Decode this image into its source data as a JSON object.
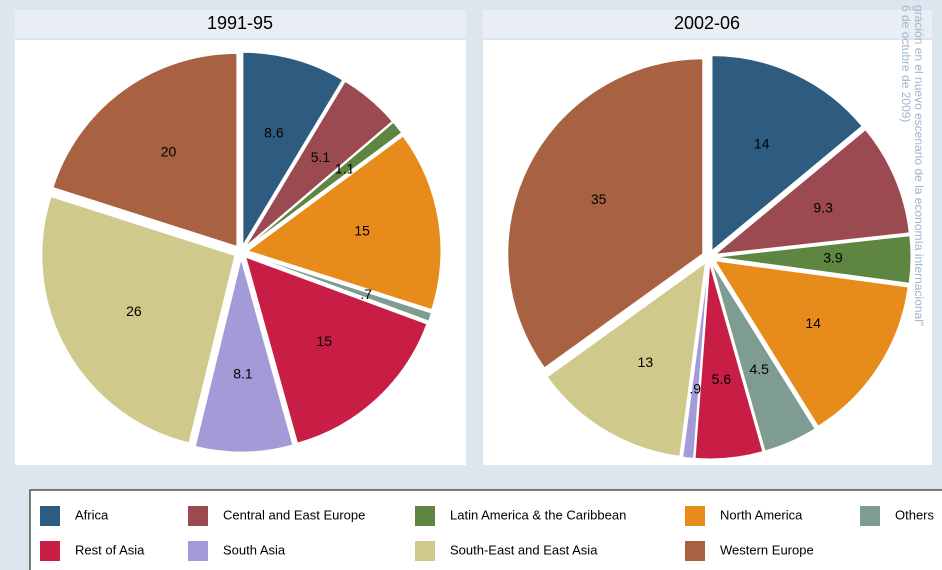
{
  "chart_data": [
    {
      "type": "pie",
      "title": "1991-95",
      "categories": [
        "Africa",
        "Central and East Europe",
        "Latin America & the Caribbean",
        "North America",
        "Others",
        "Rest of Asia",
        "South Asia",
        "South-East and East Asia",
        "Western Europe"
      ],
      "values": [
        8.6,
        5.1,
        1.1,
        15,
        0.7,
        15,
        8.1,
        26,
        20
      ],
      "value_labels": [
        "8.6",
        "5.1",
        "1.1",
        "15",
        ".7",
        "15",
        "8.1",
        "26",
        "20"
      ],
      "colors": [
        "#2e5b80",
        "#9c4a52",
        "#5f8641",
        "#e78c1b",
        "#7e9c92",
        "#c81e46",
        "#a39ad8",
        "#cfc98b",
        "#a86141"
      ]
    },
    {
      "type": "pie",
      "title": "2002-06",
      "categories": [
        "Africa",
        "Central and East Europe",
        "Latin America & the Caribbean",
        "North America",
        "Others",
        "Rest of Asia",
        "South Asia",
        "South-East and East Asia",
        "Western Europe"
      ],
      "values": [
        14,
        9.3,
        3.9,
        14,
        4.5,
        5.6,
        0.9,
        13,
        35
      ],
      "value_labels": [
        "14",
        "9.3",
        "3.9",
        "14",
        "4.5",
        "5.6",
        ".9",
        "13",
        "35"
      ],
      "colors": [
        "#2e5b80",
        "#9c4a52",
        "#5f8641",
        "#e78c1b",
        "#7e9c92",
        "#c81e46",
        "#a39ad8",
        "#cfc98b",
        "#a86141"
      ]
    }
  ],
  "annotations": [
    "gración en el nuevo escenario de la economía internacional\"",
    "6 de octubre de 2009)"
  ]
}
